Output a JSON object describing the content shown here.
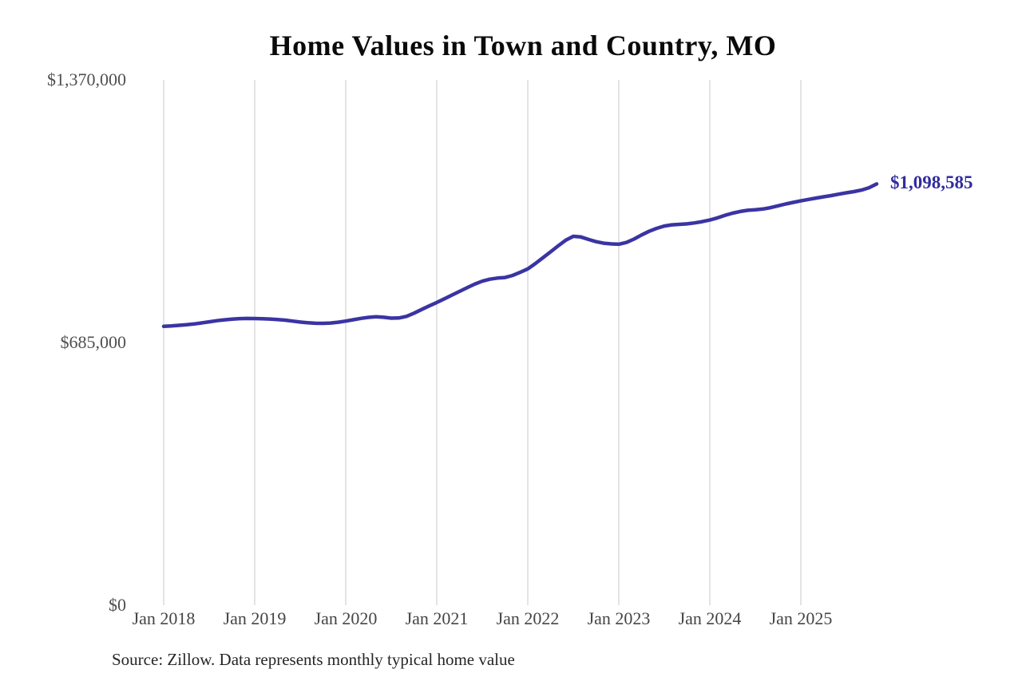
{
  "chart_data": {
    "type": "line",
    "title": "Home Values in Town and Country, MO",
    "source_note": "Source: Zillow. Data represents monthly typical home value",
    "end_label": "$1,098,585",
    "x_start": "Jan 2018",
    "x_interval": "month",
    "x_ticks": [
      "Jan 2018",
      "Jan 2019",
      "Jan 2020",
      "Jan 2021",
      "Jan 2022",
      "Jan 2023",
      "Jan 2024",
      "Jan 2025"
    ],
    "y_ticks": [
      {
        "label": "$1,370,000",
        "value": 1370000
      },
      {
        "label": "$685,000",
        "value": 685000
      },
      {
        "label": "$0",
        "value": 0
      }
    ],
    "ylim": [
      0,
      1370000
    ],
    "grid": "vertical-only",
    "legend": "none",
    "series": [
      {
        "name": "Monthly typical home value",
        "values": [
          727000,
          728200,
          729800,
          731400,
          733400,
          736000,
          739000,
          741800,
          744200,
          746100,
          747200,
          747600,
          747500,
          747000,
          746200,
          745000,
          743200,
          740800,
          738400,
          736400,
          735200,
          734900,
          735800,
          737800,
          740900,
          744300,
          747800,
          750600,
          752000,
          750800,
          748600,
          748900,
          753000,
          761500,
          771000,
          780300,
          789300,
          798800,
          808600,
          818200,
          827900,
          837200,
          845000,
          850200,
          853100,
          854500,
          859900,
          868100,
          877000,
          890900,
          906200,
          921400,
          936900,
          951700,
          961900,
          960300,
          953800,
          947900,
          944100,
          942100,
          941200,
          945800,
          954700,
          965500,
          975100,
          982800,
          988700,
          991900,
          993200,
          994300,
          996800,
          1000200,
          1004300,
          1010100,
          1016600,
          1022200,
          1026700,
          1029700,
          1031200,
          1033100,
          1036600,
          1041500,
          1046200,
          1050400,
          1054400,
          1058100,
          1061700,
          1064900,
          1068200,
          1071800,
          1075300,
          1078600,
          1082400,
          1088700,
          1098585
        ]
      }
    ],
    "colors": {
      "line": "#3a34a3",
      "end_label": "#312c9e",
      "gridline": "#c9c9c9",
      "title": "#0a0a0a",
      "axis_labels": "#4f4f4f",
      "source": "#262626"
    }
  }
}
